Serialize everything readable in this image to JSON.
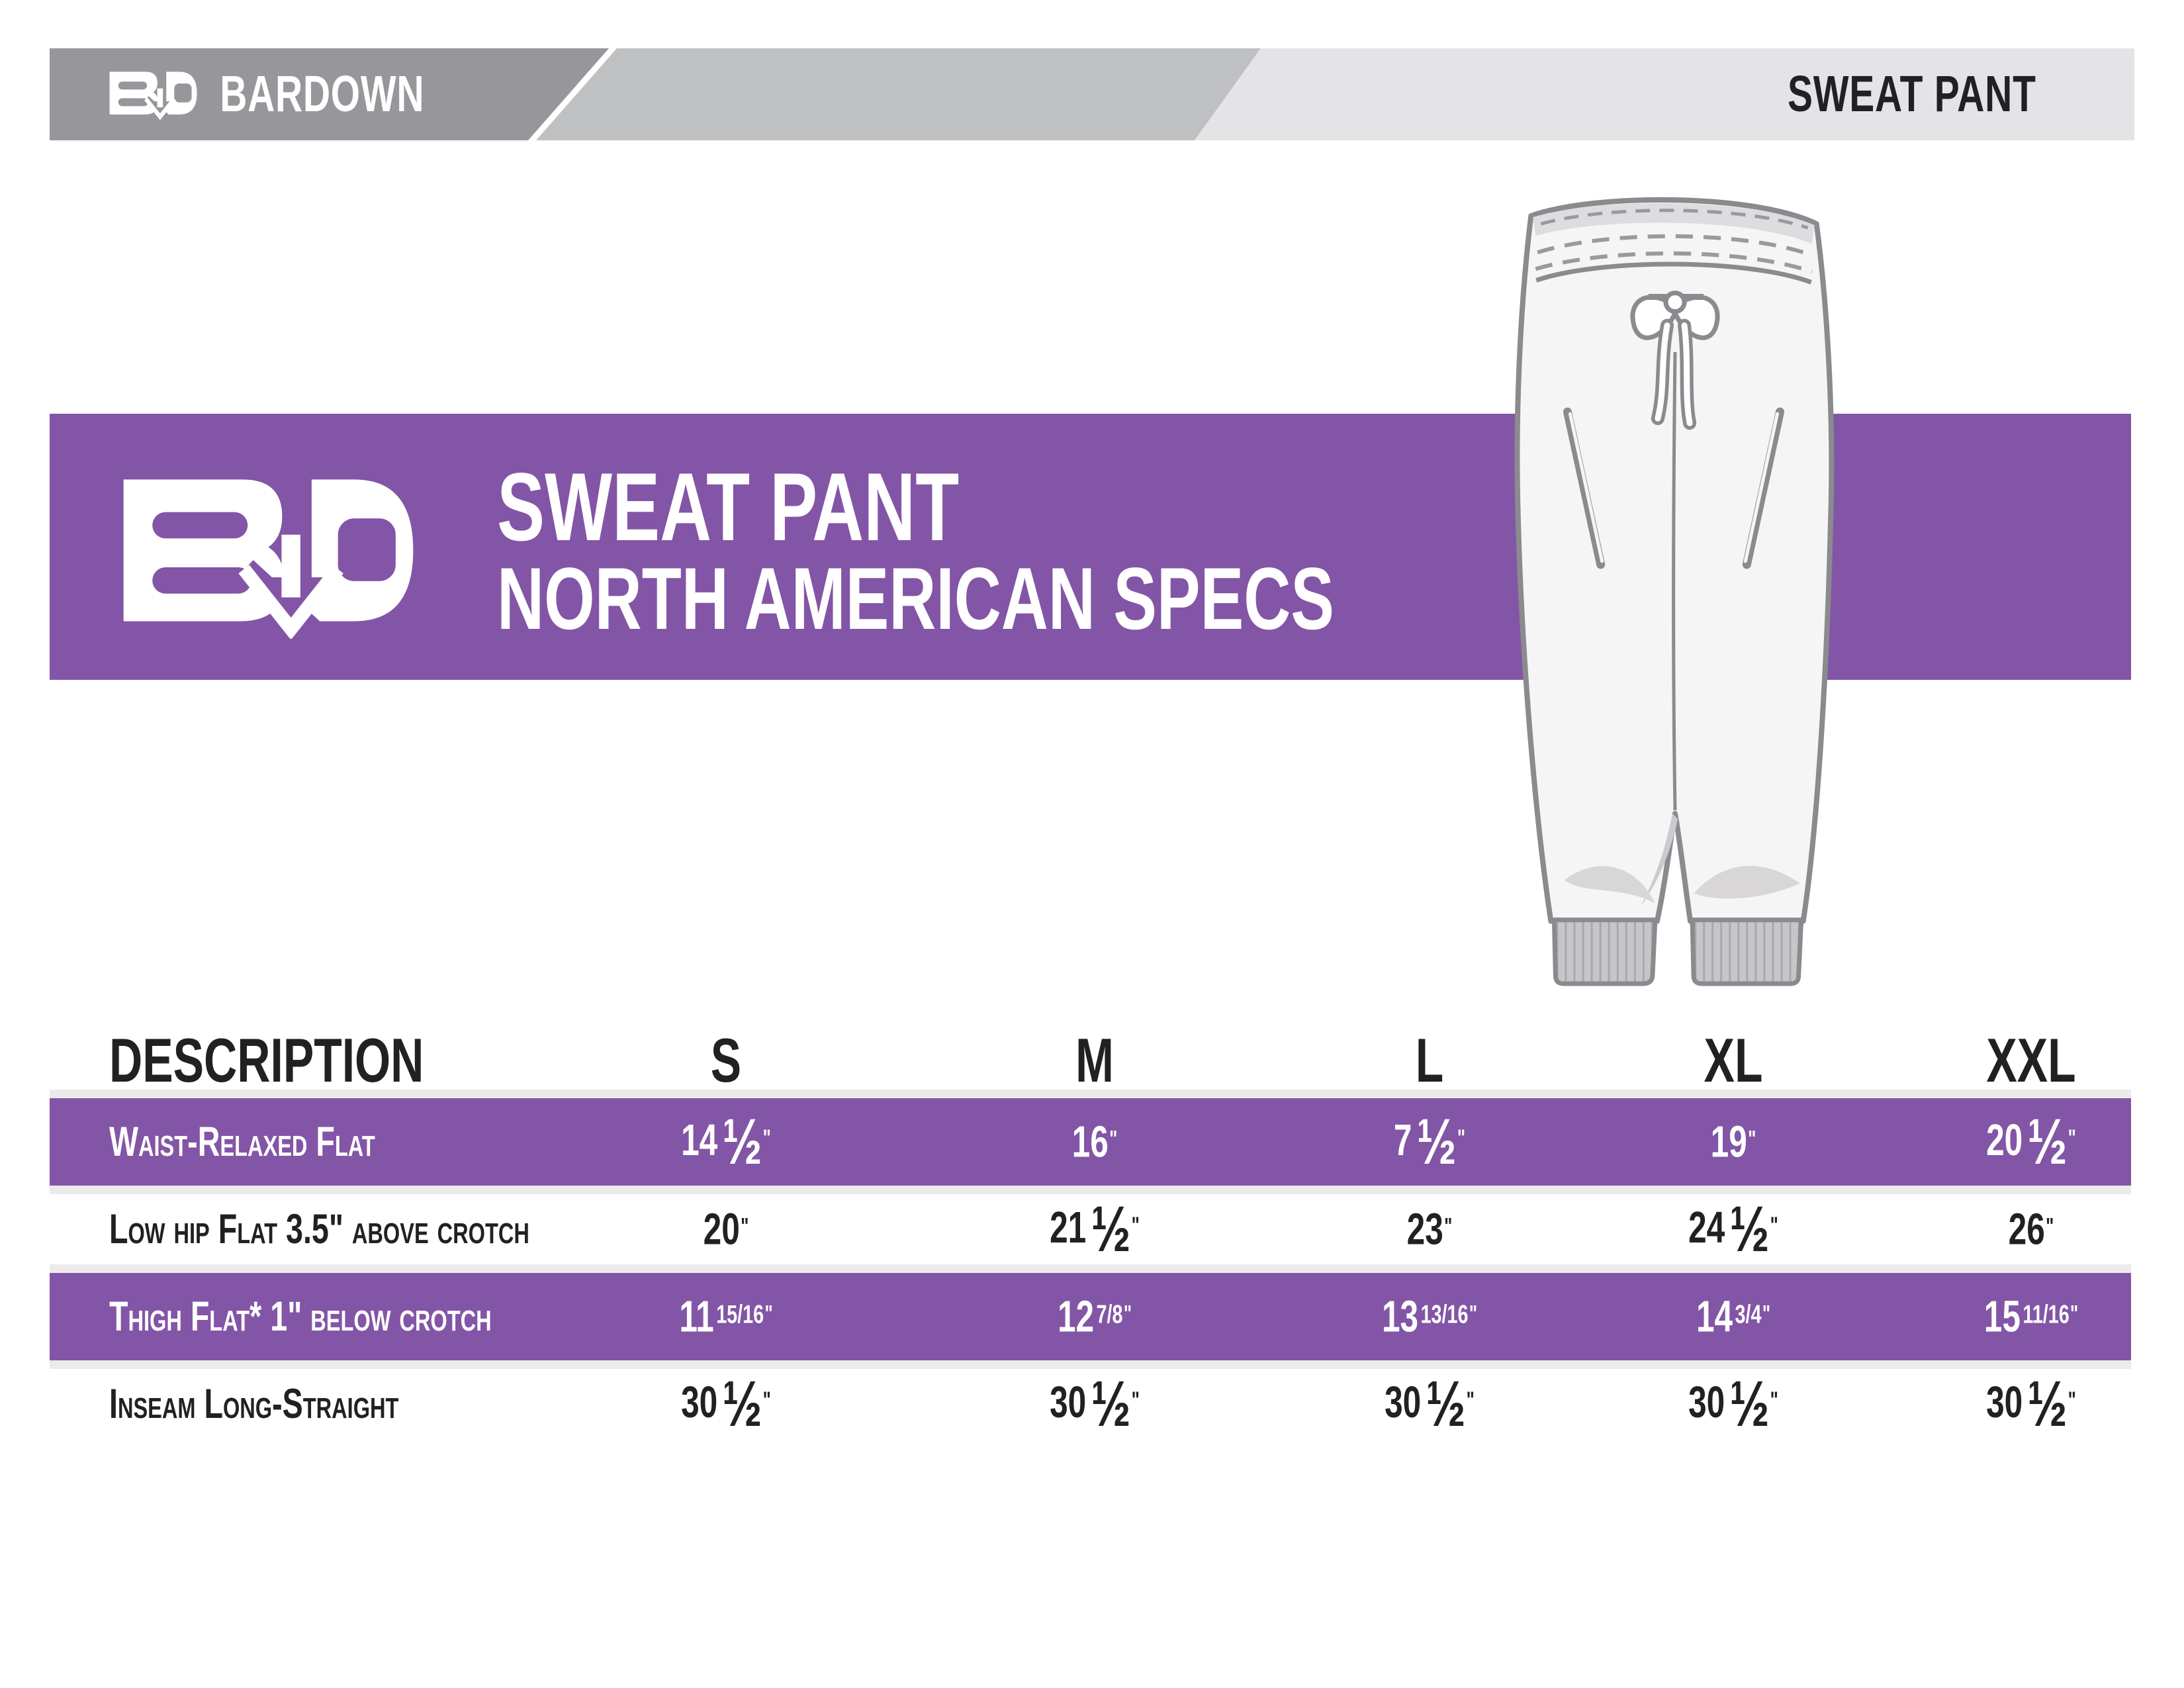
{
  "header": {
    "brand": "BARDOWN",
    "product": "SWEAT PANT"
  },
  "banner": {
    "title": "SWEAT PANT",
    "subtitle": "NORTH AMERICAN SPECS"
  },
  "illustration": {
    "subject": "sweat pant technical drawing"
  },
  "colors": {
    "purple": "#8355a6",
    "banner_dark_gray": "#97979b",
    "banner_mid_gray": "#bfc0c2",
    "banner_light_gray": "#e4e4e6",
    "text_dark": "#232024",
    "row_edge_stripe": "#edeaec"
  },
  "table": {
    "columns": [
      "DESCRIPTION",
      "S",
      "M",
      "L",
      "XL",
      "XXL"
    ],
    "rows": [
      {
        "label": "Waist-Relaxed Flat",
        "values": [
          "14 ½\"",
          "16\"",
          "7 ½\"",
          "19\"",
          "20 ½\""
        ],
        "highlight": true
      },
      {
        "label": "Low hip Flat 3.5\" above crotch",
        "values": [
          "20\"",
          "21 ½\"",
          "23\"",
          "24 ½\"",
          "26\""
        ],
        "highlight": false
      },
      {
        "label": "Thigh Flat* 1\" below crotch",
        "values": [
          "11 15/16\"",
          "12 7/8\"",
          "13 13/16 \"",
          "14 3/4\"",
          "15 11/16\""
        ],
        "highlight": true
      },
      {
        "label": "Inseam Long-Straight",
        "values": [
          "30 ½\"",
          "30 ½\"",
          "30 ½\"",
          "30 ½\"",
          "30 ½\""
        ],
        "highlight": false
      }
    ]
  }
}
